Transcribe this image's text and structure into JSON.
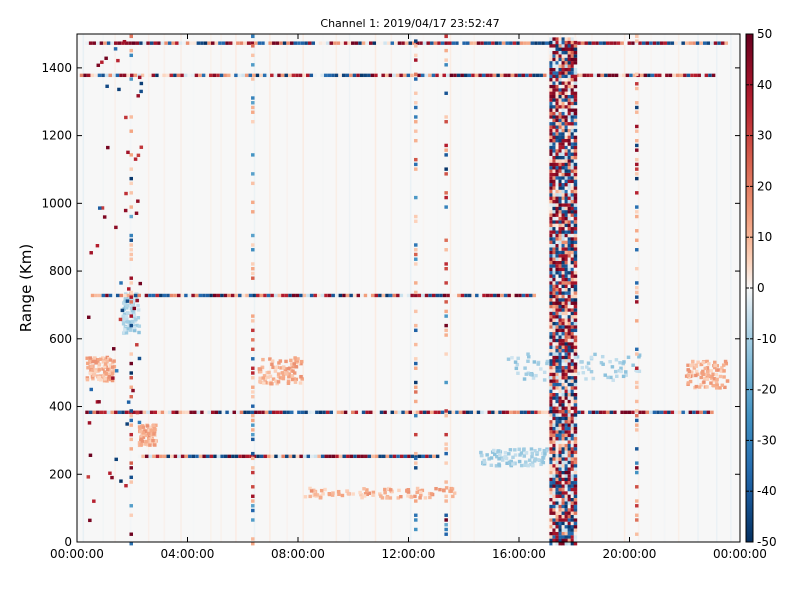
{
  "chart_data": {
    "type": "heatmap",
    "title": "Channel 1: 2019/04/17 23:52:47",
    "ylabel": "Range (Km)",
    "xlabel": "",
    "x_ticks": [
      "00:00:00",
      "04:00:00",
      "08:00:00",
      "12:00:00",
      "16:00:00",
      "20:00:00",
      "00:00:00"
    ],
    "x_tick_hours": [
      0,
      4,
      8,
      12,
      16,
      20,
      24
    ],
    "xlim_hours": [
      0,
      24
    ],
    "y_ticks": [
      0,
      200,
      400,
      600,
      800,
      1000,
      1200,
      1400
    ],
    "ylim": [
      0,
      1500
    ],
    "colorbar": {
      "ticks": [
        50,
        40,
        30,
        20,
        10,
        0,
        -10,
        -20,
        -30,
        -40,
        -50
      ],
      "range": [
        -50,
        50
      ],
      "colormap": "RdBu_r",
      "low_color": "#053061",
      "mid_color": "#f7f7f7",
      "high_color": "#67001f"
    },
    "features": {
      "vertical_noise_band_hours": [
        17.1,
        18.0
      ],
      "horizontal_streaks": [
        {
          "range_km": 1475,
          "from_h": 0.3,
          "to_h": 23.5
        },
        {
          "range_km": 1380,
          "from_h": 0.1,
          "to_h": 23.0
        },
        {
          "range_km": 730,
          "from_h": 0.5,
          "to_h": 16.5
        },
        {
          "range_km": 385,
          "from_h": 0.3,
          "to_h": 23.0
        },
        {
          "range_km": 255,
          "from_h": 2.2,
          "to_h": 13.0
        }
      ],
      "vertical_streaks_hours": [
        1.9,
        6.3,
        12.2,
        13.3,
        20.2
      ],
      "warm_patches": [
        {
          "x_h": 2.2,
          "y_km": 290,
          "w_h": 0.6,
          "h_km": 60
        },
        {
          "x_h": 6.5,
          "y_km": 470,
          "w_h": 1.6,
          "h_km": 80
        },
        {
          "x_h": 8.2,
          "y_km": 135,
          "w_h": 5.5,
          "h_km": 30
        },
        {
          "x_h": 22.0,
          "y_km": 460,
          "w_h": 1.5,
          "h_km": 80
        },
        {
          "x_h": 0.3,
          "y_km": 480,
          "w_h": 1.0,
          "h_km": 70
        }
      ],
      "cool_patches": [
        {
          "x_h": 15.5,
          "y_km": 480,
          "w_h": 5.0,
          "h_km": 80
        },
        {
          "x_h": 14.5,
          "y_km": 230,
          "w_h": 2.5,
          "h_km": 50
        },
        {
          "x_h": 1.6,
          "y_km": 620,
          "w_h": 0.6,
          "h_km": 120
        }
      ]
    }
  }
}
